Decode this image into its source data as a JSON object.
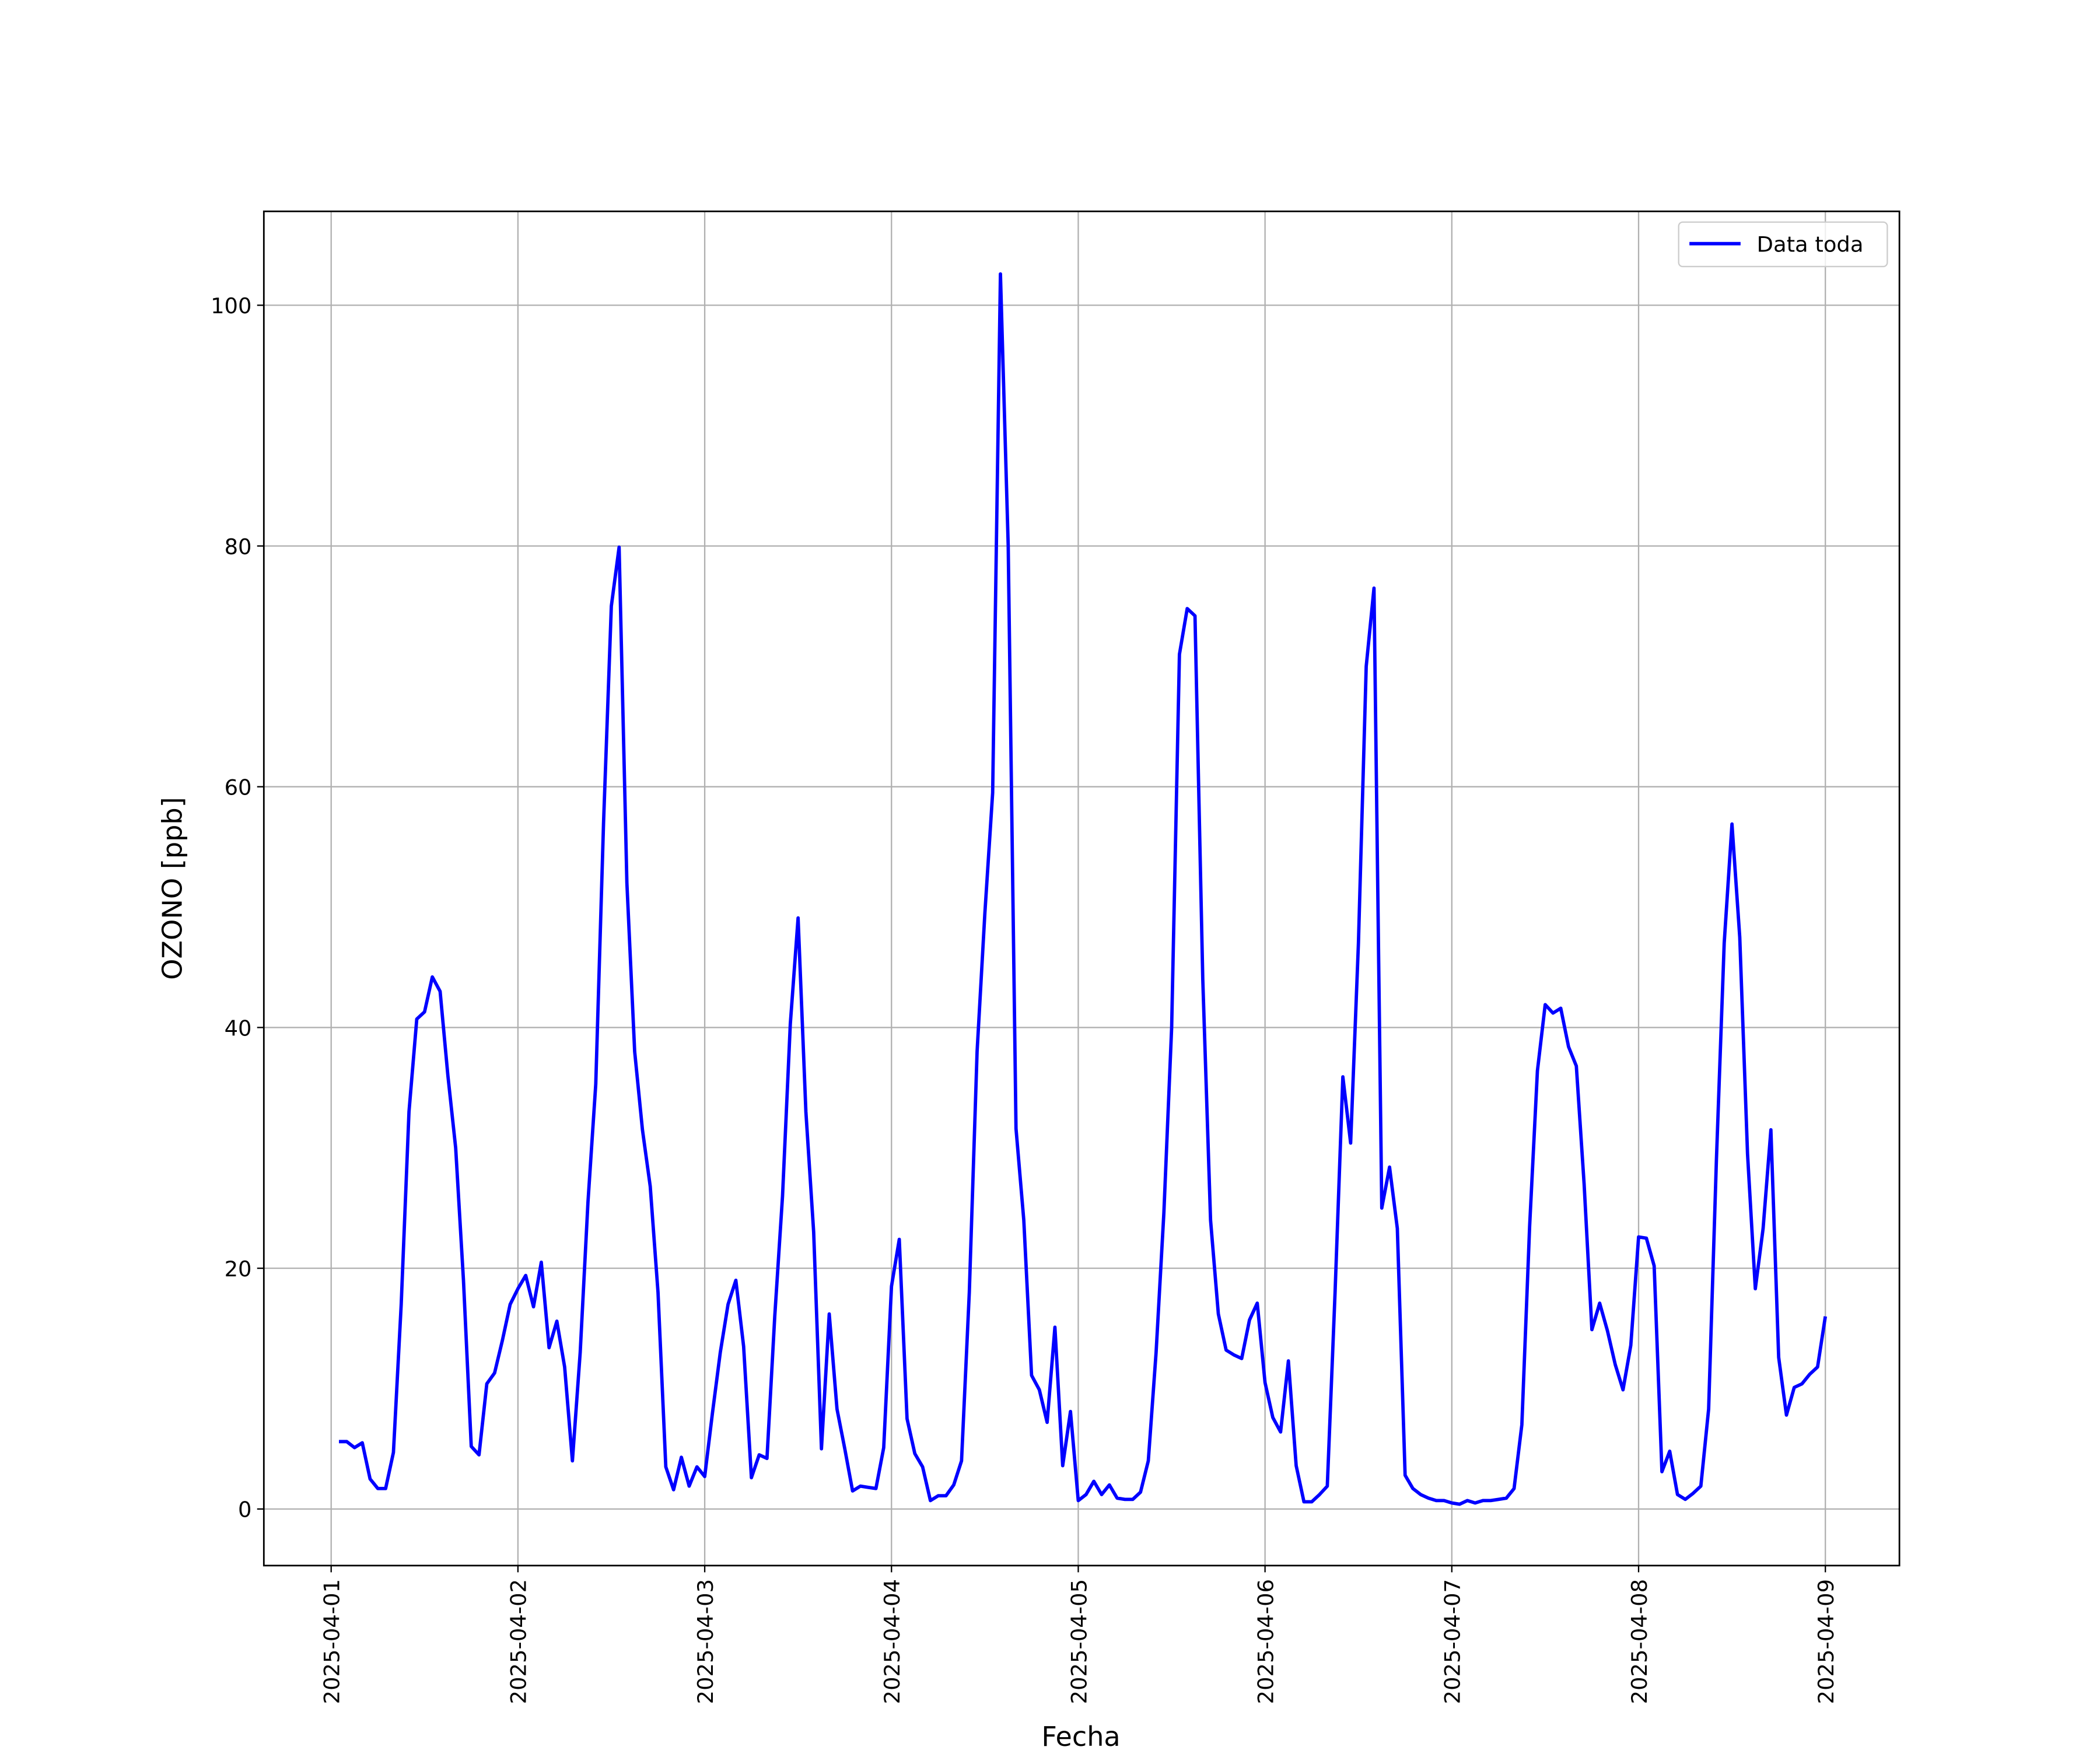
{
  "chart_data": {
    "type": "line",
    "xlabel": "Fecha",
    "ylabel": "OZONO [ppb]",
    "x": [
      "2025-04-01 01:00",
      "2025-04-01 02:00",
      "2025-04-01 03:00",
      "2025-04-01 04:00",
      "2025-04-01 05:00",
      "2025-04-01 06:00",
      "2025-04-01 07:00",
      "2025-04-01 08:00",
      "2025-04-01 09:00",
      "2025-04-01 10:00",
      "2025-04-01 11:00",
      "2025-04-01 12:00",
      "2025-04-01 13:00",
      "2025-04-01 14:00",
      "2025-04-01 15:00",
      "2025-04-01 16:00",
      "2025-04-01 17:00",
      "2025-04-01 18:00",
      "2025-04-01 19:00",
      "2025-04-01 20:00",
      "2025-04-01 21:00",
      "2025-04-01 22:00",
      "2025-04-01 23:00",
      "2025-04-02 00:00",
      "2025-04-02 01:00",
      "2025-04-02 02:00",
      "2025-04-02 03:00",
      "2025-04-02 04:00",
      "2025-04-02 05:00",
      "2025-04-02 06:00",
      "2025-04-02 07:00",
      "2025-04-02 08:00",
      "2025-04-02 09:00",
      "2025-04-02 10:00",
      "2025-04-02 11:00",
      "2025-04-02 12:00",
      "2025-04-02 13:00",
      "2025-04-02 14:00",
      "2025-04-02 15:00",
      "2025-04-02 16:00",
      "2025-04-02 17:00",
      "2025-04-02 18:00",
      "2025-04-02 19:00",
      "2025-04-02 20:00",
      "2025-04-02 21:00",
      "2025-04-02 22:00",
      "2025-04-02 23:00",
      "2025-04-03 00:00",
      "2025-04-03 01:00",
      "2025-04-03 02:00",
      "2025-04-03 03:00",
      "2025-04-03 04:00",
      "2025-04-03 05:00",
      "2025-04-03 06:00",
      "2025-04-03 07:00",
      "2025-04-03 08:00",
      "2025-04-03 09:00",
      "2025-04-03 10:00",
      "2025-04-03 11:00",
      "2025-04-03 12:00",
      "2025-04-03 13:00",
      "2025-04-03 14:00",
      "2025-04-03 15:00",
      "2025-04-03 16:00",
      "2025-04-03 17:00",
      "2025-04-03 18:00",
      "2025-04-03 19:00",
      "2025-04-03 20:00",
      "2025-04-03 21:00",
      "2025-04-03 22:00",
      "2025-04-03 23:00",
      "2025-04-04 00:00",
      "2025-04-04 01:00",
      "2025-04-04 02:00",
      "2025-04-04 03:00",
      "2025-04-04 04:00",
      "2025-04-04 05:00",
      "2025-04-04 06:00",
      "2025-04-04 07:00",
      "2025-04-04 08:00",
      "2025-04-04 09:00",
      "2025-04-04 10:00",
      "2025-04-04 11:00",
      "2025-04-04 12:00",
      "2025-04-04 13:00",
      "2025-04-04 14:00",
      "2025-04-04 15:00",
      "2025-04-04 16:00",
      "2025-04-04 17:00",
      "2025-04-04 18:00",
      "2025-04-04 19:00",
      "2025-04-04 20:00",
      "2025-04-04 21:00",
      "2025-04-04 22:00",
      "2025-04-04 23:00",
      "2025-04-05 00:00",
      "2025-04-05 01:00",
      "2025-04-05 02:00",
      "2025-04-05 03:00",
      "2025-04-05 04:00",
      "2025-04-05 05:00",
      "2025-04-05 06:00",
      "2025-04-05 07:00",
      "2025-04-05 08:00",
      "2025-04-05 09:00",
      "2025-04-05 10:00",
      "2025-04-05 11:00",
      "2025-04-05 12:00",
      "2025-04-05 13:00",
      "2025-04-05 14:00",
      "2025-04-05 15:00",
      "2025-04-05 16:00",
      "2025-04-05 17:00",
      "2025-04-05 18:00",
      "2025-04-05 19:00",
      "2025-04-05 20:00",
      "2025-04-05 21:00",
      "2025-04-05 22:00",
      "2025-04-05 23:00",
      "2025-04-06 00:00",
      "2025-04-06 01:00",
      "2025-04-06 02:00",
      "2025-04-06 03:00",
      "2025-04-06 04:00",
      "2025-04-06 05:00",
      "2025-04-06 06:00",
      "2025-04-06 07:00",
      "2025-04-06 08:00",
      "2025-04-06 09:00",
      "2025-04-06 10:00",
      "2025-04-06 11:00",
      "2025-04-06 12:00",
      "2025-04-06 13:00",
      "2025-04-06 14:00",
      "2025-04-06 15:00",
      "2025-04-06 16:00",
      "2025-04-06 17:00",
      "2025-04-06 18:00",
      "2025-04-06 19:00",
      "2025-04-06 20:00",
      "2025-04-06 21:00",
      "2025-04-06 22:00",
      "2025-04-06 23:00",
      "2025-04-07 00:00",
      "2025-04-07 01:00",
      "2025-04-07 02:00",
      "2025-04-07 03:00",
      "2025-04-07 04:00",
      "2025-04-07 05:00",
      "2025-04-07 06:00",
      "2025-04-07 07:00",
      "2025-04-07 08:00",
      "2025-04-07 09:00",
      "2025-04-07 10:00",
      "2025-04-07 11:00",
      "2025-04-07 12:00",
      "2025-04-07 13:00",
      "2025-04-07 14:00",
      "2025-04-07 15:00",
      "2025-04-07 16:00",
      "2025-04-07 17:00",
      "2025-04-07 18:00",
      "2025-04-07 19:00",
      "2025-04-07 20:00",
      "2025-04-07 21:00",
      "2025-04-07 22:00",
      "2025-04-07 23:00",
      "2025-04-08 00:00",
      "2025-04-08 01:00",
      "2025-04-08 02:00",
      "2025-04-08 03:00",
      "2025-04-08 04:00",
      "2025-04-08 05:00",
      "2025-04-08 06:00",
      "2025-04-08 07:00",
      "2025-04-08 08:00",
      "2025-04-08 09:00",
      "2025-04-08 10:00",
      "2025-04-08 11:00",
      "2025-04-08 12:00",
      "2025-04-08 13:00",
      "2025-04-08 14:00",
      "2025-04-08 15:00",
      "2025-04-08 16:00",
      "2025-04-08 17:00",
      "2025-04-08 18:00",
      "2025-04-08 19:00",
      "2025-04-08 20:00",
      "2025-04-08 21:00",
      "2025-04-08 22:00",
      "2025-04-08 23:00",
      "2025-04-09 00:00"
    ],
    "series": [
      {
        "name": "Data toda",
        "color": "#0000ff",
        "values": [
          5.6,
          5.6,
          5.1,
          5.5,
          2.5,
          1.7,
          1.7,
          4.7,
          17,
          33,
          40.7,
          41.3,
          44.2,
          43,
          36,
          30,
          19,
          5.2,
          4.5,
          10.4,
          11.3,
          14,
          17,
          18.3,
          19.4,
          16.8,
          20.5,
          13.4,
          15.6,
          11.8,
          4,
          13,
          25.5,
          35.3,
          57,
          75,
          79.9,
          52,
          38,
          31.5,
          26.8,
          18,
          3.5,
          1.6,
          4.3,
          1.9,
          3.5,
          2.7,
          8,
          13,
          17,
          19,
          13.5,
          2.6,
          4.5,
          4.2,
          16,
          26,
          40.3,
          49.1,
          33,
          23,
          5,
          16.2,
          8.3,
          5,
          1.5,
          1.9,
          1.8,
          1.7,
          5.1,
          18.5,
          22.4,
          7.5,
          4.6,
          3.5,
          0.7,
          1.1,
          1.1,
          2,
          4,
          18,
          38,
          49.5,
          59.5,
          102.6,
          80,
          31.6,
          24,
          11.1,
          9.9,
          7.2,
          15.1,
          3.6,
          8.1,
          0.7,
          1.2,
          2.3,
          1.2,
          2,
          0.9,
          0.8,
          0.8,
          1.4,
          4,
          13,
          24.6,
          40,
          71,
          74.8,
          74.2,
          44,
          24,
          16.2,
          13.2,
          12.8,
          12.5,
          15.7,
          17.1,
          10.5,
          7.6,
          6.4,
          12.3,
          3.6,
          0.6,
          0.6,
          1.2,
          1.9,
          18,
          35.9,
          30.4,
          47,
          70,
          76.5,
          25,
          28.4,
          23.3,
          2.8,
          1.7,
          1.2,
          0.9,
          0.7,
          0.7,
          0.5,
          0.4,
          0.7,
          0.5,
          0.7,
          0.7,
          0.8,
          0.9,
          1.7,
          7,
          23.5,
          36.4,
          41.9,
          41.2,
          41.6,
          38.4,
          36.8,
          27,
          14.9,
          17.1,
          14.8,
          12,
          9.9,
          13.6,
          22.6,
          22.5,
          20.2,
          3.1,
          4.8,
          1.2,
          0.8,
          1.3,
          1.9,
          8.3,
          29,
          47,
          56.9,
          47.5,
          29.5,
          18.3,
          23.3,
          31.5,
          12.6,
          7.8,
          10.1,
          10.4,
          11.2,
          11.8,
          16
        ]
      }
    ],
    "xlim": [
      "2025-03-31 15:21",
      "2025-04-09 09:31"
    ],
    "xticks": [
      "2025-04-01",
      "2025-04-02",
      "2025-04-03",
      "2025-04-04",
      "2025-04-05",
      "2025-04-06",
      "2025-04-07",
      "2025-04-08",
      "2025-04-09"
    ],
    "ylim": [
      -4.7,
      107.8
    ],
    "yticks": [
      0,
      20,
      40,
      60,
      80,
      100
    ],
    "grid": true,
    "legend": "upper right"
  }
}
